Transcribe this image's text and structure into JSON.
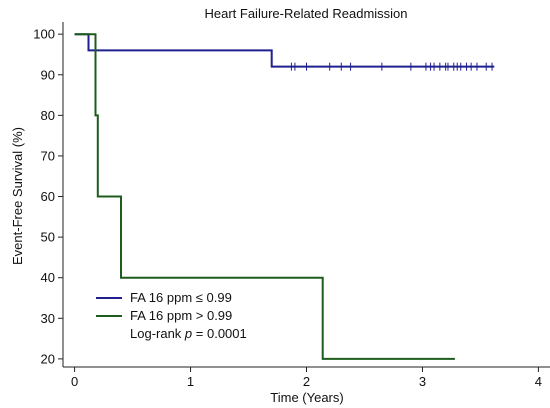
{
  "chart_data": {
    "type": "line",
    "subtype": "kaplan-meier step",
    "title": "Heart Failure-Related Readmission",
    "xlabel": "Time (Years)",
    "ylabel": "Event-Free Survival (%)",
    "xlim": [
      -0.1,
      4.1
    ],
    "ylim": [
      18,
      103
    ],
    "xticks": [
      0,
      1,
      2,
      3,
      4
    ],
    "yticks": [
      20,
      30,
      40,
      50,
      60,
      70,
      80,
      90,
      100
    ],
    "grid": false,
    "legend_position": "bottom-left",
    "series": [
      {
        "name": "FA 16 ppm ≤ 0.99",
        "color": "#1f1f8f",
        "steps": [
          [
            0,
            100
          ],
          [
            0.12,
            100
          ],
          [
            0.12,
            96
          ],
          [
            1.7,
            96
          ],
          [
            1.7,
            92
          ],
          [
            3.62,
            92
          ]
        ],
        "censor_times": [
          1.87,
          1.9,
          2.0,
          2.2,
          2.3,
          2.38,
          2.65,
          2.9,
          3.03,
          3.07,
          3.1,
          3.15,
          3.2,
          3.22,
          3.27,
          3.3,
          3.33,
          3.38,
          3.42,
          3.47,
          3.55,
          3.6
        ]
      },
      {
        "name": "FA 16 ppm > 0.99",
        "color": "#1e5c1e",
        "steps": [
          [
            0,
            100
          ],
          [
            0.18,
            100
          ],
          [
            0.18,
            80
          ],
          [
            0.2,
            80
          ],
          [
            0.2,
            60
          ],
          [
            0.4,
            60
          ],
          [
            0.4,
            40
          ],
          [
            2.14,
            40
          ],
          [
            2.14,
            20
          ],
          [
            3.28,
            20
          ]
        ],
        "censor_times": []
      }
    ],
    "annotation": {
      "prefix": "Log-rank ",
      "italic": "p",
      "suffix": " = 0.0001"
    }
  }
}
